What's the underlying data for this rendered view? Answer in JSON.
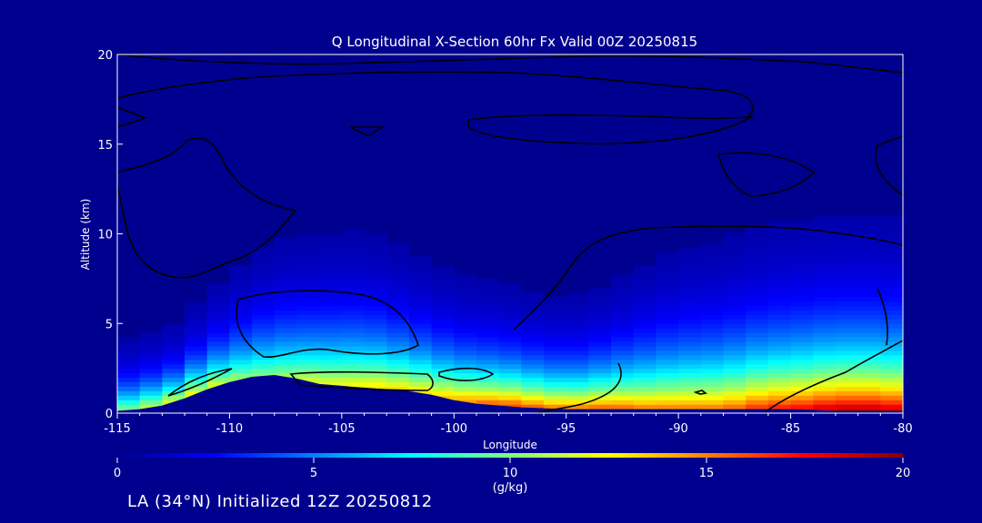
{
  "chart_data": {
    "type": "heatmap",
    "title": "Q Longitudinal X-Section 60hr  Fx Valid 00Z 20250815",
    "xlabel": "Longitude",
    "ylabel": "Altitude (km)",
    "xlim": [
      -115,
      -80
    ],
    "ylim": [
      0,
      20
    ],
    "x_ticks": [
      -115,
      -110,
      -105,
      -100,
      -95,
      -90,
      -85,
      -80
    ],
    "x_tick_labels": [
      "-115",
      "-110",
      "-105",
      "-100",
      "-95",
      "-90",
      "-85",
      "-80"
    ],
    "y_ticks": [
      0,
      5,
      10,
      15,
      20
    ],
    "y_tick_labels": [
      "0",
      "5",
      "10",
      "15",
      "20"
    ],
    "colorbar": {
      "min": 0,
      "max": 20,
      "ticks": [
        0,
        5,
        10,
        15,
        20
      ],
      "tick_labels": [
        "0",
        "5",
        "10",
        "15",
        "20"
      ],
      "units": "(g/kg)",
      "colors": [
        "#00008e",
        "#0000ff",
        "#0080ff",
        "#00ffff",
        "#80ff80",
        "#ffff00",
        "#ff8000",
        "#ff0000",
        "#800000"
      ]
    },
    "fields": {
      "columns_lon": [
        -115,
        -114,
        -113,
        -112,
        -111,
        -110,
        -109,
        -108,
        -107,
        -106,
        -105,
        -104,
        -103,
        -102,
        -101,
        -100,
        -99,
        -98,
        -97,
        -96,
        -95,
        -94,
        -93,
        -92,
        -91,
        -90,
        -89,
        -88,
        -87,
        -86,
        -85,
        -84,
        -83,
        -82,
        -81,
        -80
      ],
      "terrain_km": [
        0.1,
        0.2,
        0.4,
        0.8,
        1.3,
        1.7,
        2.0,
        2.1,
        1.9,
        1.6,
        1.5,
        1.4,
        1.3,
        1.2,
        1.0,
        0.7,
        0.5,
        0.4,
        0.3,
        0.25,
        0.2,
        0.2,
        0.2,
        0.2,
        0.2,
        0.2,
        0.2,
        0.2,
        0.2,
        0.2,
        0.2,
        0.15,
        0.1,
        0.1,
        0.1,
        0.1
      ],
      "surface_q_gkg": [
        9,
        11,
        11,
        12,
        12,
        11,
        10,
        10,
        11,
        12,
        12,
        13,
        13,
        13,
        13,
        14,
        15,
        16,
        16,
        15,
        15,
        15,
        16,
        15,
        15,
        15,
        15,
        15,
        16,
        17,
        17,
        18,
        19,
        19,
        19,
        18
      ],
      "moist_depth_km": [
        3.5,
        3.8,
        3.6,
        4.0,
        4.6,
        5.4,
        6.2,
        6.8,
        7.0,
        7.2,
        7.4,
        7.3,
        7.0,
        6.6,
        6.2,
        5.8,
        5.6,
        5.4,
        5.2,
        5.1,
        5.0,
        5.2,
        5.6,
        6.2,
        6.8,
        7.2,
        7.4,
        7.6,
        7.8,
        8.0,
        8.1,
        8.2,
        8.2,
        8.2,
        8.2,
        8.2
      ]
    }
  },
  "footer": {
    "text": "LA (34°N) Initialized 12Z 20250812"
  }
}
